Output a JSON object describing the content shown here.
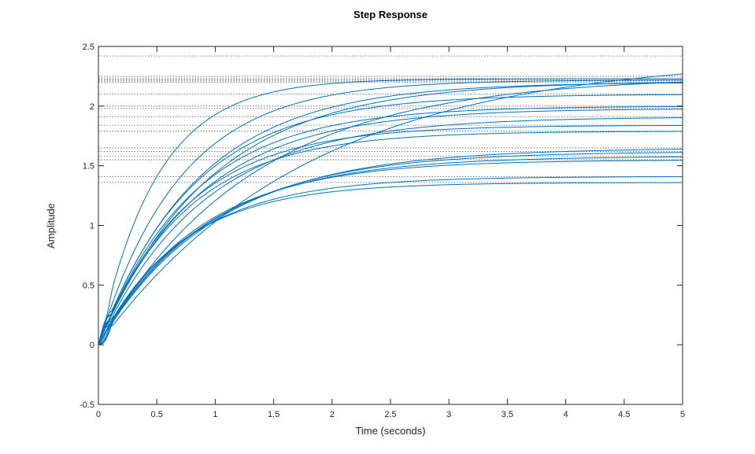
{
  "chart_data": {
    "type": "line",
    "title": "Step Response",
    "xlabel": "Time (seconds)",
    "ylabel": "Amplitude",
    "xlim": [
      0,
      5
    ],
    "ylim": [
      -0.5,
      2.5
    ],
    "xticks": [
      0,
      0.5,
      1,
      1.5,
      2,
      2.5,
      3,
      3.5,
      4,
      4.5,
      5
    ],
    "xtick_labels": [
      "0",
      "0.5",
      "1",
      "1.5",
      "2",
      "2.5",
      "3",
      "3.5",
      "4",
      "4.5",
      "5"
    ],
    "yticks": [
      -0.5,
      0,
      0.5,
      1,
      1.5,
      2,
      2.5
    ],
    "ytick_labels": [
      "-0.5",
      "0",
      "0.5",
      "1",
      "1.5",
      "2",
      "2.5"
    ],
    "grid": false,
    "line_color": "#0072BD",
    "steady_state_line_color": "#555555",
    "time_constant_note": "each curve modeled as y(t) = final * (1 - exp(-t / tau))",
    "series": [
      {
        "final": 2.23,
        "tau": 0.5
      },
      {
        "final": 2.22,
        "tau": 0.7
      },
      {
        "final": 2.42,
        "tau": 1.8
      },
      {
        "final": 2.25,
        "tau": 1.3
      },
      {
        "final": 2.21,
        "tau": 0.95
      },
      {
        "final": 2.2,
        "tau": 0.85
      },
      {
        "final": 2.1,
        "tau": 0.8
      },
      {
        "final": 2.0,
        "tau": 0.8
      },
      {
        "final": 1.98,
        "tau": 0.85
      },
      {
        "final": 1.91,
        "tau": 0.9
      },
      {
        "final": 1.84,
        "tau": 0.75
      },
      {
        "final": 1.79,
        "tau": 0.75
      },
      {
        "final": 1.65,
        "tau": 1.0
      },
      {
        "final": 1.62,
        "tau": 0.95
      },
      {
        "final": 1.58,
        "tau": 0.9
      },
      {
        "final": 1.55,
        "tau": 0.85
      },
      {
        "final": 1.41,
        "tau": 0.75
      },
      {
        "final": 1.36,
        "tau": 0.7
      }
    ]
  }
}
